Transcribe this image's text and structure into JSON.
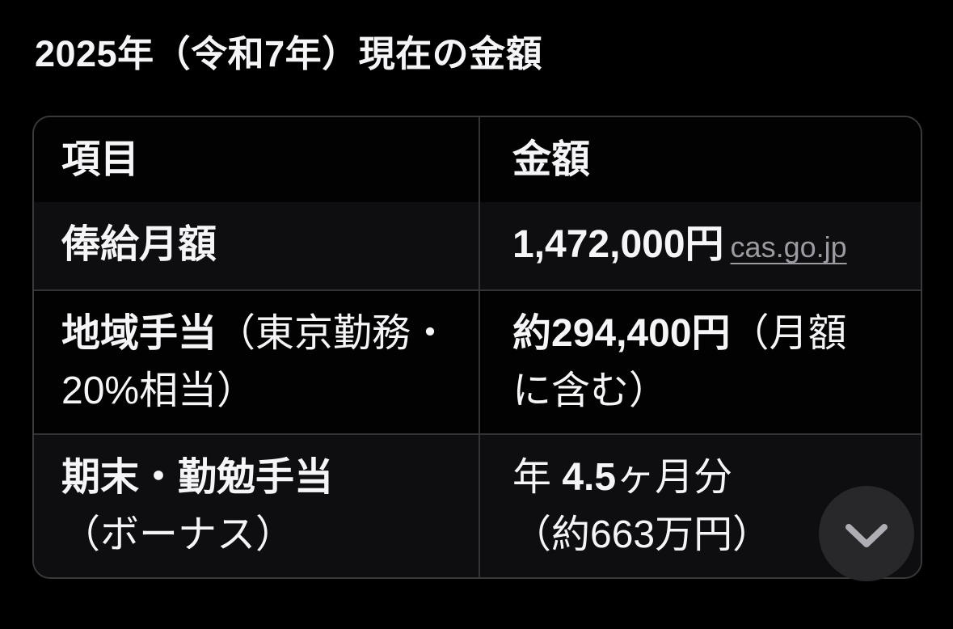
{
  "title": "2025年（令和7年）現在の金額",
  "table": {
    "headers": [
      "項目",
      "金額"
    ],
    "rows": [
      {
        "item": [
          [
            {
              "t": "俸給月額",
              "style": "bold"
            }
          ]
        ],
        "amount": [
          [
            {
              "t": "1,472,000円",
              "style": "bold"
            },
            {
              "t": "cas.go.jp",
              "style": "link"
            }
          ]
        ]
      },
      {
        "item": [
          [
            {
              "t": "地域手当",
              "style": "bold"
            },
            {
              "t": "（東京勤務・",
              "style": "regular"
            }
          ],
          [
            {
              "t": "20%相当）",
              "style": "regular"
            }
          ]
        ],
        "amount": [
          [
            {
              "t": "約294,400円",
              "style": "bold"
            },
            {
              "t": "（月額",
              "style": "regular"
            }
          ],
          [
            {
              "t": "に含む）",
              "style": "regular"
            }
          ]
        ]
      },
      {
        "item": [
          [
            {
              "t": "期末・勤勉手当",
              "style": "bold"
            }
          ],
          [
            {
              "t": "（ボーナス）",
              "style": "regular"
            }
          ]
        ],
        "amount": [
          [
            {
              "t": "年 ",
              "style": "regular"
            },
            {
              "t": "4.5",
              "style": "bold"
            },
            {
              "t": "ヶ月分",
              "style": "regular"
            }
          ],
          [
            {
              "t": "（約663万円）",
              "style": "regular"
            }
          ]
        ]
      }
    ]
  },
  "scroll_button": {
    "icon": "chevron-down-icon"
  },
  "colors": {
    "background": "#000000",
    "text": "#f5f5f7",
    "border": "#3a3a3c",
    "divider": "#343436",
    "row_alt_bg": "#0e0e10",
    "link": "#9b9ba1",
    "button_bg": "#28282a",
    "button_icon": "#aeaeb4"
  }
}
